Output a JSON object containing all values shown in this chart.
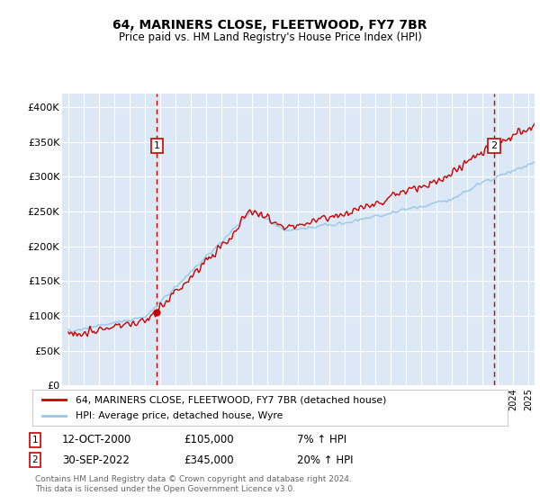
{
  "title": "64, MARINERS CLOSE, FLEETWOOD, FY7 7BR",
  "subtitle": "Price paid vs. HM Land Registry's House Price Index (HPI)",
  "bg_color": "#ffffff",
  "plot_bg_color": "#dce8f5",
  "red_line_label": "64, MARINERS CLOSE, FLEETWOOD, FY7 7BR (detached house)",
  "blue_line_label": "HPI: Average price, detached house, Wyre",
  "sale1_date": "12-OCT-2000",
  "sale1_price": 105000,
  "sale1_hpi": "7% ↑ HPI",
  "sale2_date": "30-SEP-2022",
  "sale2_price": 345000,
  "sale2_hpi": "20% ↑ HPI",
  "footer": "Contains HM Land Registry data © Crown copyright and database right 2024.\nThis data is licensed under the Open Government Licence v3.0.",
  "ylim": [
    0,
    420000
  ],
  "yticks": [
    0,
    50000,
    100000,
    150000,
    200000,
    250000,
    300000,
    350000,
    400000
  ],
  "ytick_labels": [
    "£0",
    "£50K",
    "£100K",
    "£150K",
    "£200K",
    "£250K",
    "£300K",
    "£350K",
    "£400K"
  ],
  "sale1_year": 2000.78,
  "sale2_year": 2022.75,
  "xmin": 1994.6,
  "xmax": 2025.4
}
